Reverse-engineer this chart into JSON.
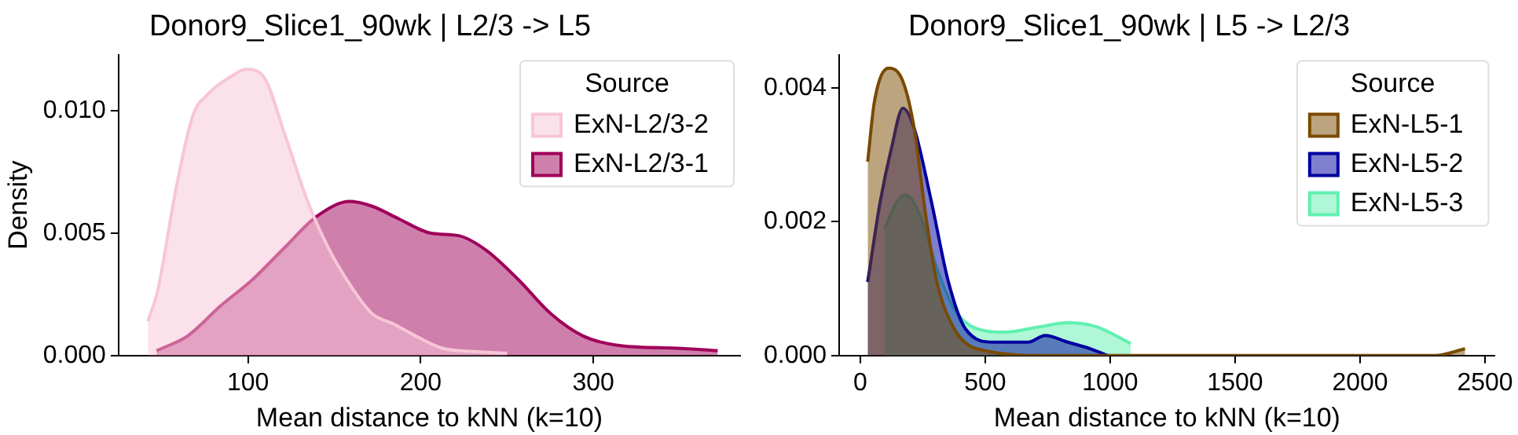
{
  "chart_data": [
    {
      "type": "area",
      "title": "Donor9_Slice1_90wk | L2/3 -> L5",
      "xlabel": "Mean distance to kNN (k=10)",
      "ylabel": "Density",
      "legend_title": "Source",
      "legend": "top right",
      "grid": false,
      "xlim": [
        25,
        385
      ],
      "xticks": [
        100,
        200,
        300
      ],
      "ylim": [
        0,
        0.0123
      ],
      "yticks": [
        {
          "value": 0,
          "label": "0.000"
        },
        {
          "value": 0.005,
          "label": "0.005"
        },
        {
          "value": 0.01,
          "label": "0.010"
        }
      ],
      "series": [
        {
          "name": "ExN-L2/3-2",
          "color": "#f7c6d6",
          "x": [
            42,
            47.5,
            58.5,
            68,
            77,
            90,
            99,
            109,
            121,
            134,
            146.5,
            159,
            172,
            184,
            197,
            212.5,
            231,
            250
          ],
          "values": [
            0.0014,
            0.0026,
            0.0069,
            0.0098,
            0.0107,
            0.0114,
            0.0117,
            0.0114,
            0.0091,
            0.0064,
            0.0044,
            0.0029,
            0.0017,
            0.0013,
            0.0008,
            0.0003,
            0.00016,
            0.0001
          ]
        },
        {
          "name": "ExN-L2/3-1",
          "color": "#a0005a",
          "x": [
            47,
            65,
            83.6,
            102.5,
            121,
            140,
            159,
            172,
            187,
            206,
            222,
            238,
            256.6,
            275.5,
            294,
            316,
            348,
            372
          ],
          "values": [
            0.0002,
            0.0008,
            0.002,
            0.0031,
            0.0044,
            0.0057,
            0.0063,
            0.0061,
            0.0056,
            0.005,
            0.0049,
            0.0043,
            0.0031,
            0.0017,
            0.0008,
            0.0004,
            0.0003,
            0.0002
          ]
        }
      ]
    },
    {
      "type": "area",
      "title": "Donor9_Slice1_90wk | L5 -> L2/3",
      "xlabel": "Mean distance to kNN (k=10)",
      "legend_title": "Source",
      "legend": "top right",
      "grid": false,
      "xlim": [
        -84,
        2539
      ],
      "xticks": [
        0,
        500,
        1000,
        1500,
        2000,
        2500
      ],
      "ylim": [
        0,
        0.0045
      ],
      "yticks": [
        {
          "value": 0,
          "label": "0.000"
        },
        {
          "value": 0.002,
          "label": "0.002"
        },
        {
          "value": 0.004,
          "label": "0.004"
        }
      ],
      "series": [
        {
          "name": "ExN-L5-1",
          "color": "#7a4a00",
          "x": [
            30,
            57,
            114,
            171,
            216,
            262,
            307,
            376,
            467,
            763,
            1674,
            2300,
            2420
          ],
          "values": [
            0.0029,
            0.0038,
            0.0043,
            0.0041,
            0.0034,
            0.0021,
            0.0011,
            0.0004,
            0.0001,
            0,
            0,
            0,
            0.0001
          ]
        },
        {
          "name": "ExN-L5-2",
          "color": "#0000a0",
          "x": [
            30,
            80,
            125,
            171,
            216,
            285,
            353,
            421,
            535,
            672,
            740,
            831,
            922,
            990
          ],
          "values": [
            0.0011,
            0.0023,
            0.0031,
            0.0037,
            0.0034,
            0.0023,
            0.0011,
            0.0004,
            0.0002,
            0.0002,
            0.0003,
            0.0002,
            0.0001,
            0
          ]
        },
        {
          "name": "ExN-L5-3",
          "color": "#60f0b0",
          "x": [
            98,
            148,
            182,
            239,
            307,
            376,
            467,
            581,
            717,
            831,
            945,
            1082
          ],
          "values": [
            0.0019,
            0.0023,
            0.0024,
            0.0021,
            0.0013,
            0.0007,
            0.0004,
            0.00035,
            0.00043,
            0.00049,
            0.00043,
            0.00018
          ]
        }
      ]
    }
  ]
}
